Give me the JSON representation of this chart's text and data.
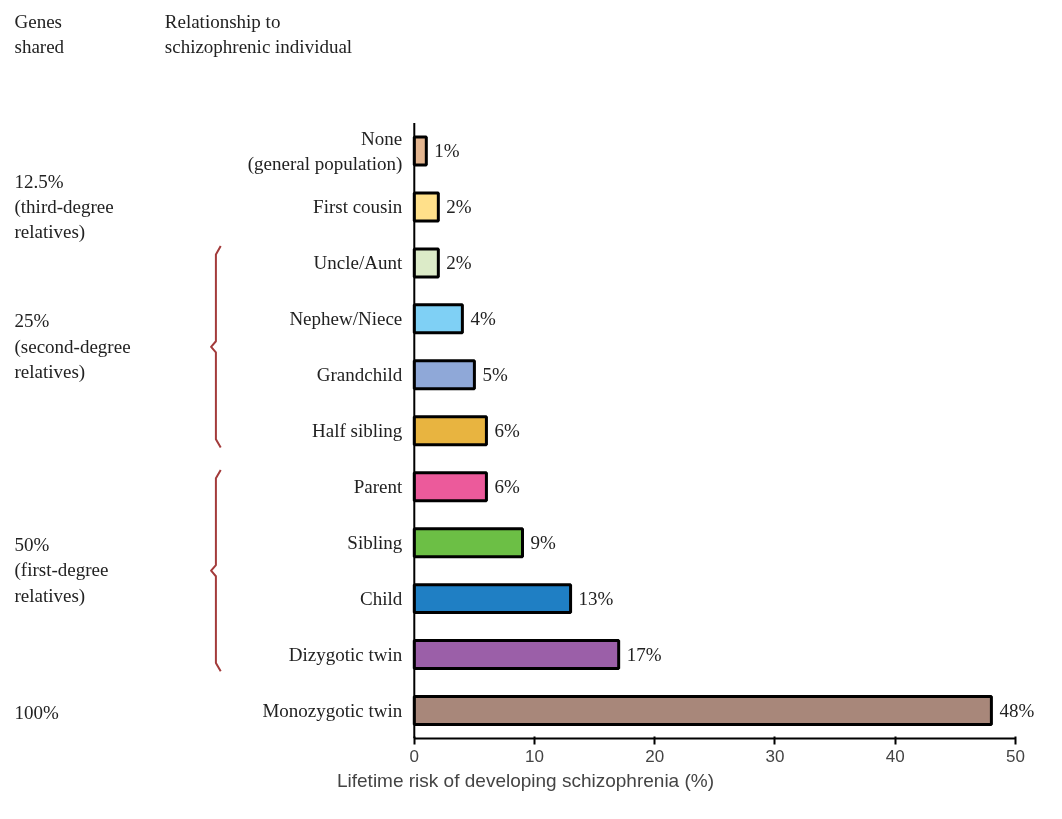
{
  "chart_data": {
    "type": "bar",
    "orientation": "horizontal",
    "xlabel": "Lifetime risk of developing schizophrenia (%)",
    "categories": [
      "None (general population)",
      "First cousin",
      "Uncle/Aunt",
      "Nephew/Niece",
      "Grandchild",
      "Half sibling",
      "Parent",
      "Sibling",
      "Child",
      "Dizygotic twin",
      "Monozygotic twin"
    ],
    "values": [
      1,
      2,
      2,
      4,
      5,
      6,
      6,
      9,
      13,
      17,
      48
    ],
    "colors": [
      "#e3b58f",
      "#ffe08a",
      "#dcebc8",
      "#7fd0f5",
      "#8fa8d8",
      "#e8b440",
      "#ec5a9b",
      "#6cbf45",
      "#1f7fc4",
      "#9b5fa8",
      "#a8877a"
    ],
    "value_labels": [
      "1%",
      "2%",
      "2%",
      "4%",
      "5%",
      "6%",
      "6%",
      "9%",
      "13%",
      "17%",
      "48%"
    ],
    "xlim": [
      0,
      50
    ],
    "xticks": [
      0,
      10,
      20,
      30,
      40,
      50
    ],
    "grid": false,
    "legend": false,
    "annotations": [
      "Genes\nshared",
      "Relationship to\nschizophrenic individual",
      "12.5%\n(third-degree\nrelatives)",
      "25%\n(second-degree\nrelatives)",
      "50%\n(first-degree\nrelatives)",
      "100%"
    ]
  }
}
